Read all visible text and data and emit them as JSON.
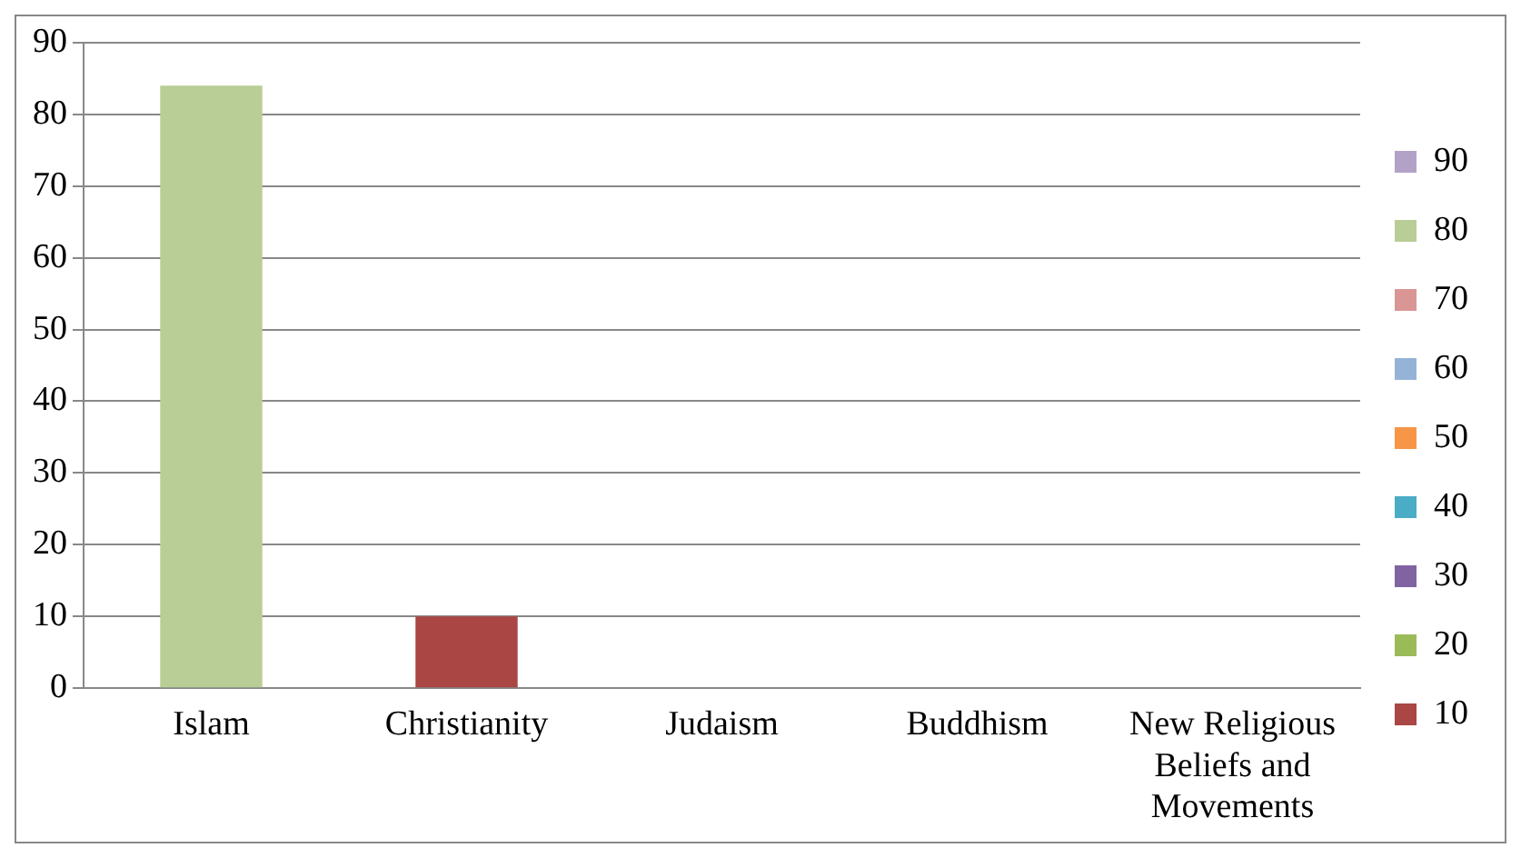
{
  "chart_data": {
    "type": "bar",
    "stacked": true,
    "categories": [
      "Islam",
      "Christianity",
      "Judaism",
      "Buddhism",
      "New Religious Beliefs and Movements"
    ],
    "series": [
      {
        "name": "90",
        "color": "#b3a2c7",
        "values": [
          null,
          null,
          null,
          null,
          null
        ]
      },
      {
        "name": "80",
        "color": "#b9cd96",
        "values": [
          84,
          null,
          null,
          null,
          null
        ]
      },
      {
        "name": "70",
        "color": "#d99694",
        "values": [
          null,
          null,
          null,
          null,
          null
        ]
      },
      {
        "name": "60",
        "color": "#95b3d7",
        "values": [
          null,
          null,
          null,
          null,
          null
        ]
      },
      {
        "name": "50",
        "color": "#f79646",
        "values": [
          null,
          null,
          null,
          null,
          null
        ]
      },
      {
        "name": "40",
        "color": "#4bacc6",
        "values": [
          null,
          null,
          null,
          null,
          null
        ]
      },
      {
        "name": "30",
        "color": "#8064a2",
        "values": [
          null,
          null,
          null,
          null,
          null
        ]
      },
      {
        "name": "20",
        "color": "#9bbb59",
        "values": [
          null,
          null,
          null,
          null,
          null
        ]
      },
      {
        "name": "10",
        "color": "#aa4644",
        "values": [
          null,
          10,
          null,
          null,
          null
        ]
      }
    ],
    "ylim": [
      0,
      90
    ],
    "yticks": [
      0,
      10,
      20,
      30,
      40,
      50,
      60,
      70,
      80,
      90
    ],
    "grid": "y",
    "legend": "right"
  }
}
